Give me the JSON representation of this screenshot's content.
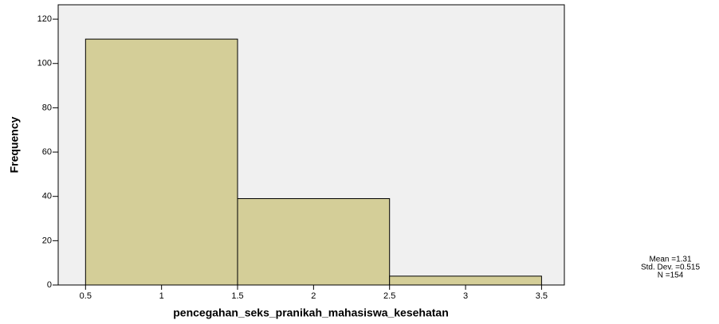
{
  "chart_data": {
    "type": "histogram",
    "x_label": "pencegahan_seks_pranikah_mahasiswa_kesehatan",
    "y_label": "Frequency",
    "bins": [
      0.5,
      1.5,
      2.5,
      3.5
    ],
    "values": [
      111,
      39,
      4
    ],
    "color": "#d4ce98",
    "xlim": [
      0.32,
      3.65
    ],
    "xticks": [
      0.5,
      1,
      1.5,
      2,
      2.5,
      3,
      3.5
    ],
    "ylim": [
      0,
      126.5
    ],
    "yticks": [
      0,
      20,
      40,
      60,
      80,
      100,
      120
    ],
    "annotations": [
      "Mean =1.31",
      "Std. Dev. =0.515",
      "N =154"
    ]
  }
}
